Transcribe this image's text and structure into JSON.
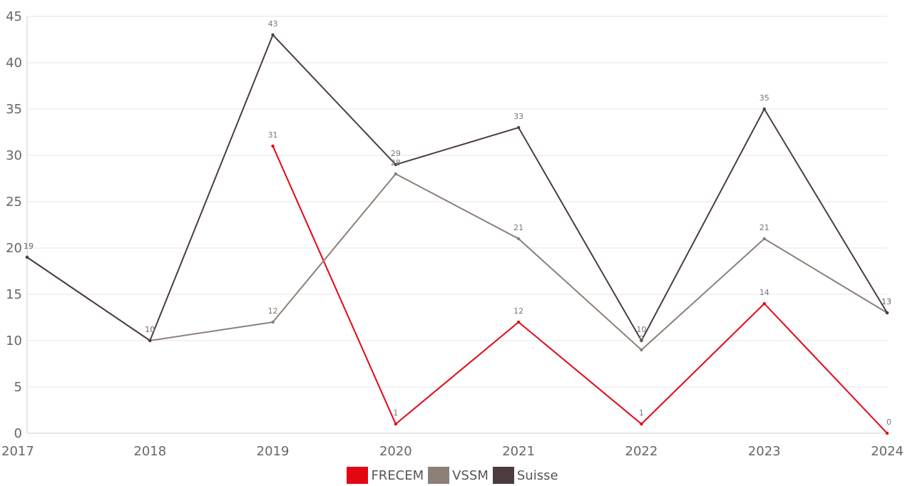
{
  "chart_data": {
    "type": "line",
    "categories": [
      "2017",
      "2018",
      "2019",
      "2020",
      "2021",
      "2022",
      "2023",
      "2024"
    ],
    "ylim": [
      0,
      45
    ],
    "yticks": [
      0,
      5,
      10,
      15,
      20,
      25,
      30,
      35,
      40,
      45
    ],
    "grid": true,
    "legend_position": "bottom-center",
    "series": [
      {
        "name": "FRECEM",
        "color": "#e30613",
        "values": [
          null,
          null,
          31,
          1,
          12,
          1,
          14,
          0
        ]
      },
      {
        "name": "VSSM",
        "color": "#8c7f77",
        "values": [
          19,
          10,
          12,
          28,
          21,
          9,
          21,
          13
        ]
      },
      {
        "name": "Suisse",
        "color": "#4d3c3f",
        "values": [
          19,
          10,
          43,
          29,
          33,
          10,
          35,
          13
        ]
      }
    ]
  }
}
